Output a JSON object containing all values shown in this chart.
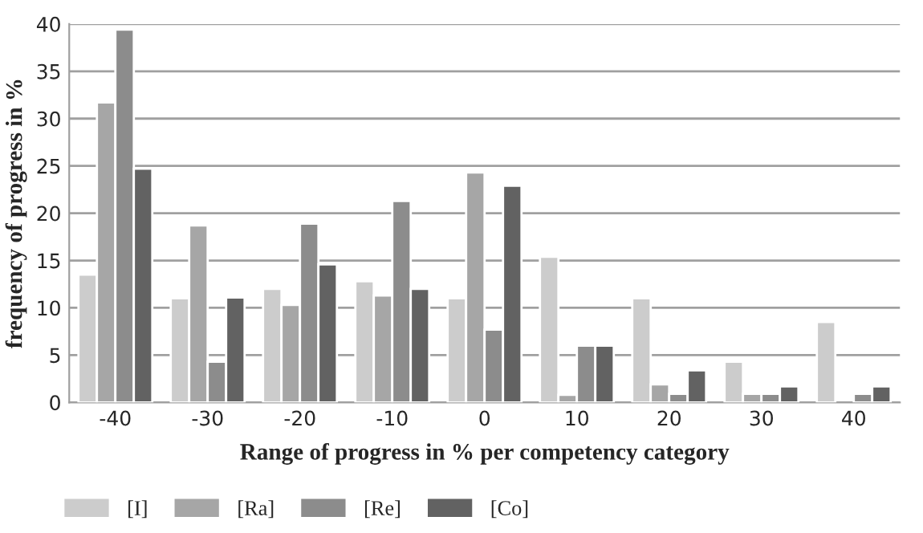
{
  "chart_data": {
    "type": "bar",
    "xlabel": "Range of progress in % per competency category",
    "ylabel": "frequency of progress in %",
    "categories": [
      "-40",
      "-30",
      "-20",
      "-10",
      "0",
      "10",
      "20",
      "30",
      "40"
    ],
    "series": [
      {
        "name": "[I]",
        "color": "#cccccc",
        "values": [
          13.5,
          11,
          12,
          12.8,
          11,
          15.4,
          11,
          4.3,
          8.5
        ]
      },
      {
        "name": "[Ra]",
        "color": "#a6a6a6",
        "values": [
          31.7,
          18.7,
          10.3,
          11.3,
          24.3,
          0.8,
          1.9,
          0.9,
          null
        ]
      },
      {
        "name": "[Re]",
        "color": "#8c8c8c",
        "values": [
          39.4,
          4.3,
          18.9,
          21.3,
          7.7,
          6,
          0.9,
          0.9,
          0.9
        ]
      },
      {
        "name": "[Co]",
        "color": "#626262",
        "values": [
          24.7,
          11.1,
          14.6,
          12,
          22.9,
          6,
          3.4,
          1.7,
          1.7
        ]
      }
    ],
    "ylim": [
      0,
      40
    ],
    "yticks": [
      0,
      5,
      10,
      15,
      20,
      25,
      30,
      35,
      40
    ],
    "grid": "y",
    "legend": "bottom left"
  }
}
